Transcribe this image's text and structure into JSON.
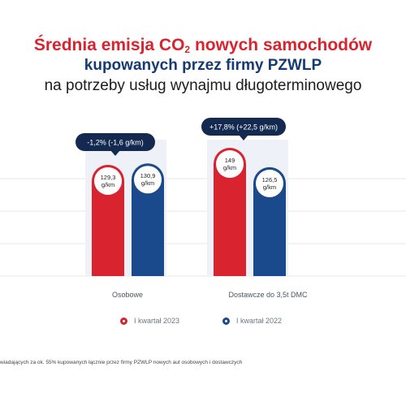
{
  "header": {
    "title_prefix": "Średnia emisja CO",
    "title_sub": "2",
    "title_suffix": " nowych samochodów",
    "title_line2": "kupowanych przez firmy PZWLP",
    "title_line3": "na potrzeby usług wynajmu długoterminowego"
  },
  "chart_data": {
    "type": "bar",
    "categories": [
      "Osobowe",
      "Dostawcze do 3,5t DMC"
    ],
    "series": [
      {
        "name": "I kwartał 2023",
        "values": [
          129.3,
          149
        ],
        "labels": [
          "129,3",
          "149"
        ],
        "color": "#d9242f"
      },
      {
        "name": "I kwartał 2022",
        "values": [
          130.9,
          126.5
        ],
        "labels": [
          "130,9",
          "126,5"
        ],
        "color": "#1a4a8c"
      }
    ],
    "unit": "g/km",
    "changes": [
      "-1,2% (-1,6 g/km)",
      "+17,8% (+22,5 g/km)"
    ],
    "grid": true,
    "legend_position": "bottom"
  },
  "footnote": "wiadających za ok. 55% kupowanych łącznie przez firmy PZWLP nowych aut osobowych i dostawczych"
}
